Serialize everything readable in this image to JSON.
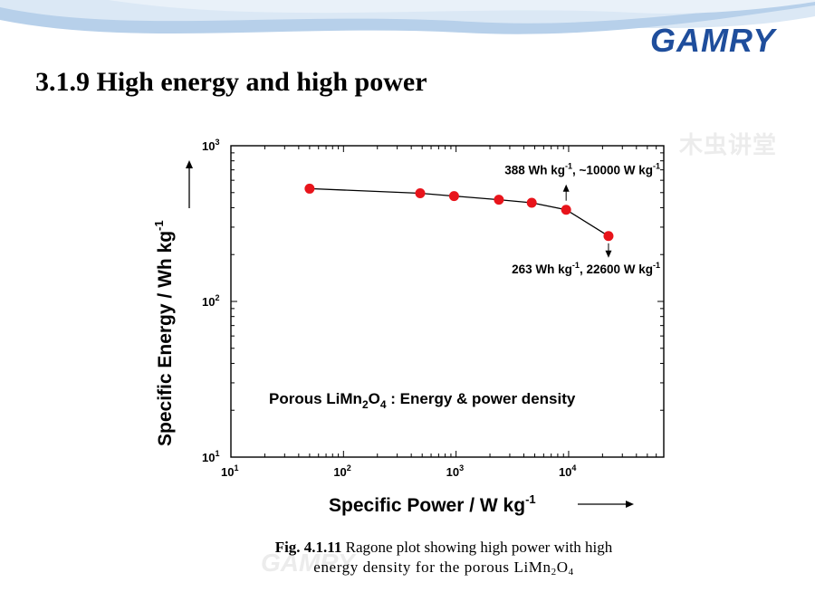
{
  "slide": {
    "title": "3.1.9 High energy and high power",
    "logo_text": "GAMRY",
    "watermark_text": "木虫讲堂",
    "accent_color": "#1f4e9c"
  },
  "caption": {
    "fig_number": "Fig. 4.1.11",
    "line1_text": " Ragone plot showing high power with high",
    "line2_prefix": "energy density  for the porous LiMn",
    "line2_sub1": "2",
    "line2_mid": "O",
    "line2_sub2": "4"
  },
  "chart_data": {
    "type": "scatter",
    "x_scale": "log",
    "y_scale": "log",
    "xlim": [
      10,
      70000
    ],
    "ylim": [
      10,
      1000
    ],
    "grid": false,
    "xlabel": "Specific Power / W kg",
    "xlabel_sup": "-1",
    "ylabel": "Specific Energy /  Wh kg",
    "ylabel_sup": "-1",
    "x_ticks": [
      {
        "value": 10,
        "base": "10",
        "exp": "1"
      },
      {
        "value": 100,
        "base": "10",
        "exp": "2"
      },
      {
        "value": 1000,
        "base": "10",
        "exp": "3"
      },
      {
        "value": 10000,
        "base": "10",
        "exp": "4"
      }
    ],
    "y_ticks": [
      {
        "value": 10,
        "base": "10",
        "exp": "1"
      },
      {
        "value": 100,
        "base": "10",
        "exp": "2"
      },
      {
        "value": 1000,
        "base": "10",
        "exp": "3"
      }
    ],
    "series": [
      {
        "marker_color": "#e8141b",
        "line_color": "#000000",
        "x": [
          50,
          480,
          960,
          2400,
          4700,
          9500,
          22600
        ],
        "y": [
          530,
          495,
          475,
          450,
          430,
          388,
          263
        ]
      }
    ],
    "annotations": [
      {
        "text_before": "388 Wh kg",
        "sup1": "-1",
        "text_mid": ", ~10000 W kg",
        "sup2": "-1",
        "x": 9500,
        "y": 388,
        "arrow": "up"
      },
      {
        "text_before": "263 Wh kg",
        "sup1": "-1",
        "text_mid": ", 22600 W kg",
        "sup2": "-1",
        "x": 22600,
        "y": 263,
        "arrow": "down"
      }
    ],
    "inset_label": {
      "text_before": "Porous LiMn",
      "sub1": "2",
      "text_mid": "O",
      "sub2": "4",
      "text_after": " : Energy & power density"
    }
  }
}
